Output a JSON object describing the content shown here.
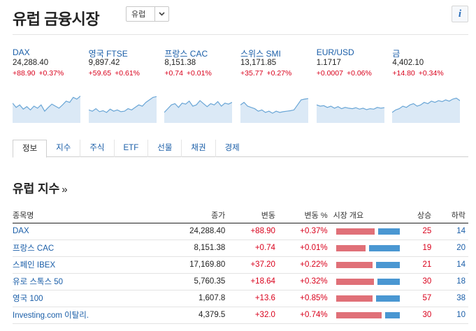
{
  "header": {
    "title": "유럽 금융시장",
    "region_select": "유럽"
  },
  "quotes": [
    {
      "name": "DAX",
      "price": "24,288.40",
      "change": "+88.90",
      "pct": "+0.37%",
      "spark": [
        0.62,
        0.45,
        0.55,
        0.38,
        0.48,
        0.35,
        0.5,
        0.42,
        0.55,
        0.3,
        0.45,
        0.58,
        0.5,
        0.42,
        0.55,
        0.7,
        0.65,
        0.85,
        0.78,
        0.9
      ]
    },
    {
      "name": "영국 FTSE",
      "price": "9,897.42",
      "change": "+59.65",
      "pct": "+0.61%",
      "spark": [
        0.35,
        0.3,
        0.4,
        0.28,
        0.32,
        0.25,
        0.38,
        0.3,
        0.35,
        0.28,
        0.3,
        0.4,
        0.35,
        0.45,
        0.55,
        0.5,
        0.65,
        0.75,
        0.85,
        0.88
      ]
    },
    {
      "name": "프랑스 CAC",
      "price": "8,151.38",
      "change": "+0.74",
      "pct": "+0.01%",
      "spark": [
        0.25,
        0.4,
        0.55,
        0.6,
        0.45,
        0.62,
        0.58,
        0.7,
        0.5,
        0.55,
        0.72,
        0.6,
        0.48,
        0.6,
        0.55,
        0.68,
        0.5,
        0.62,
        0.58,
        0.65
      ]
    },
    {
      "name": "스위스 SMI",
      "price": "13,171.85",
      "change": "+35.77",
      "pct": "+0.27%",
      "spark": [
        0.55,
        0.65,
        0.5,
        0.45,
        0.4,
        0.3,
        0.35,
        0.25,
        0.3,
        0.22,
        0.3,
        0.25,
        0.28,
        0.3,
        0.32,
        0.35,
        0.55,
        0.75,
        0.78,
        0.8
      ]
    },
    {
      "name": "EUR/USD",
      "price": "1.1717",
      "change": "+0.0007",
      "pct": "+0.06%",
      "spark": [
        0.55,
        0.5,
        0.52,
        0.45,
        0.5,
        0.42,
        0.48,
        0.4,
        0.45,
        0.42,
        0.4,
        0.44,
        0.38,
        0.42,
        0.36,
        0.4,
        0.38,
        0.45,
        0.42,
        0.44
      ]
    },
    {
      "name": "금",
      "price": "4,402.10",
      "change": "+14.80",
      "pct": "+0.34%",
      "spark": [
        0.25,
        0.35,
        0.4,
        0.5,
        0.45,
        0.55,
        0.6,
        0.5,
        0.55,
        0.65,
        0.6,
        0.7,
        0.65,
        0.72,
        0.68,
        0.75,
        0.7,
        0.78,
        0.82,
        0.72
      ]
    }
  ],
  "tabs": [
    "정보",
    "지수",
    "주식",
    "ETF",
    "선물",
    "채권",
    "경제"
  ],
  "section": {
    "title": "유럽 지수",
    "raquo": "»"
  },
  "table": {
    "headers": {
      "name": "종목명",
      "last": "종가",
      "chg": "변동",
      "chg_pct": "변동 %",
      "overview": "시장 개요",
      "adv": "상승",
      "dec": "하락"
    },
    "rows": [
      {
        "name": "DAX",
        "last": "24,288.40",
        "chg": "+88.90",
        "pct": "+0.37%",
        "adv": "25",
        "dec": "14"
      },
      {
        "name": "프랑스 CAC",
        "last": "8,151.38",
        "chg": "+0.74",
        "pct": "+0.01%",
        "adv": "19",
        "dec": "20"
      },
      {
        "name": "스페인 IBEX",
        "last": "17,169.80",
        "chg": "+37.20",
        "pct": "+0.22%",
        "adv": "21",
        "dec": "14"
      },
      {
        "name": "유로 스톡스 50",
        "last": "5,760.35",
        "chg": "+18.64",
        "pct": "+0.32%",
        "adv": "30",
        "dec": "18"
      },
      {
        "name": "영국 100",
        "last": "1,607.8",
        "chg": "+13.6",
        "pct": "+0.85%",
        "adv": "57",
        "dec": "38"
      },
      {
        "name": "Investing.com 이탈리.",
        "last": "4,379.5",
        "chg": "+32.0",
        "pct": "+0.74%",
        "adv": "30",
        "dec": "10"
      }
    ]
  },
  "colors": {
    "up": "#d9001b",
    "link": "#1a5ea8",
    "bar_up": "#e07078",
    "bar_down": "#4a97d2",
    "spark_line": "#6aa6d6",
    "spark_fill": "#dbe9f6"
  }
}
